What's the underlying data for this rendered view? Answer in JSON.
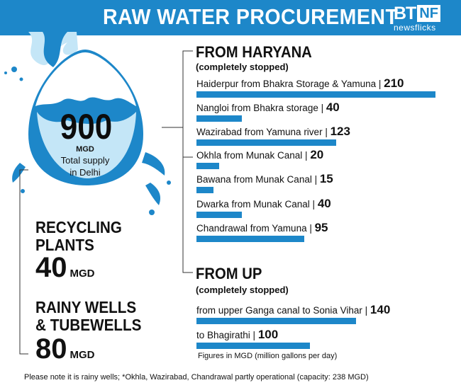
{
  "header": {
    "title": "RAW WATER PROCUREMENT",
    "logo_main": "BT",
    "logo_box": "NF",
    "logo_sub": "newsflicks"
  },
  "total": {
    "value": "900",
    "unit": "MGD",
    "label_line1": "Total supply",
    "label_line2": "in Delhi"
  },
  "recycling": {
    "line1": "RECYCLING",
    "line2": "PLANTS",
    "value": "40",
    "unit": "MGD"
  },
  "wells": {
    "line1": "RAINY WELLS",
    "line2": "& TUBEWELLS",
    "value": "80",
    "unit": "MGD"
  },
  "colors": {
    "accent": "#1d87c9",
    "drop_light": "#c4e6f7",
    "drop_dark": "#1d87c9"
  },
  "chart_data": {
    "type": "bar",
    "orientation": "horizontal",
    "unit": "MGD",
    "groups": [
      {
        "title": "FROM HARYANA",
        "subtitle": "(completely stopped)",
        "items": [
          {
            "label": "Haiderpur from Bhakra Storage & Yamuna |",
            "value": 210
          },
          {
            "label": "Nangloi from Bhakra storage |",
            "value": 40
          },
          {
            "label": "Wazirabad from Yamuna river |",
            "value": 123
          },
          {
            "label": "Okhla from Munak Canal |",
            "value": 20
          },
          {
            "label": "Bawana from Munak Canal |",
            "value": 15
          },
          {
            "label": "Dwarka from Munak Canal |",
            "value": 40
          },
          {
            "label": "Chandrawal from Yamuna |",
            "value": 95
          }
        ]
      },
      {
        "title": "FROM UP",
        "subtitle": "(completely stopped)",
        "items": [
          {
            "label": "from upper Ganga canal to Sonia Vihar |",
            "value": 140
          },
          {
            "label": "to Bhagirathi |",
            "value": 100
          }
        ]
      }
    ]
  },
  "notes": {
    "figures": "Figures in MGD (million gallons per day)",
    "footnote": "Please note it is rainy wells; *Okhla, Wazirabad, Chandrawal partly operational (capacity: 238 MGD)"
  }
}
